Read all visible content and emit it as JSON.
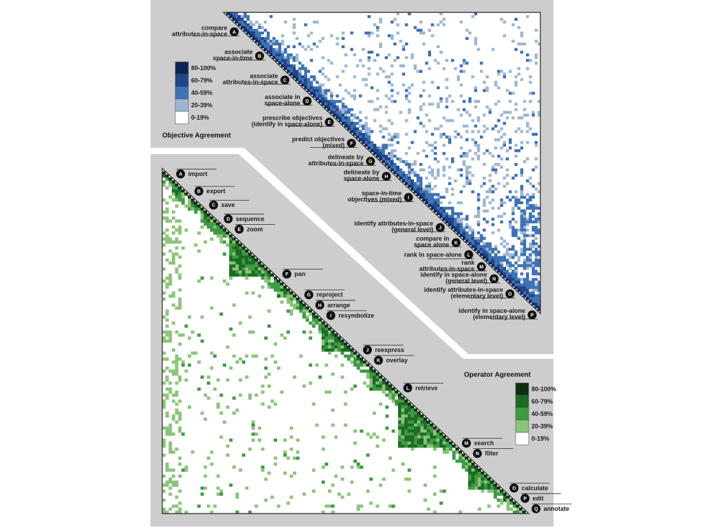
{
  "chart_data": [
    {
      "type": "heatmap",
      "title": "Objective Agreement",
      "legend": {
        "title": "Objective Agreement",
        "entries": [
          "80-100%",
          "60-79%",
          "40-59%",
          "20-39%",
          "0-19%"
        ],
        "colors": [
          "#0d2353",
          "#1f4688",
          "#3f72b4",
          "#9db7d3",
          "#ffffff"
        ]
      },
      "clusters": [
        {
          "code": "A",
          "label": "compare\nattributes-in-space"
        },
        {
          "code": "B",
          "label": "associate\nspace-in-time"
        },
        {
          "code": "C",
          "label": "associate\nattributes-in-space"
        },
        {
          "code": "D",
          "label": "associate in\nspace-alone"
        },
        {
          "code": "E",
          "label": "prescribe objectives\n(identify in space-alone)"
        },
        {
          "code": "F",
          "label": "predict objectives\n(mixed)"
        },
        {
          "code": "G",
          "label": "delineate by\nattributes-in-space"
        },
        {
          "code": "H",
          "label": "delineate by\nspace-alone"
        },
        {
          "code": "I",
          "label": "space-in-time\nobjectives (mixed)"
        },
        {
          "code": "J",
          "label": "identify attributes-in-space\n(general level)"
        },
        {
          "code": "K",
          "label": "compare in\nspace alone"
        },
        {
          "code": "L",
          "label": "rank in space-alone"
        },
        {
          "code": "M",
          "label": "rank\nattributes-in-space"
        },
        {
          "code": "N",
          "label": "identify in space-alone\n(general level)"
        },
        {
          "code": "O",
          "label": "identify attributes-in-space\n(elementary level)"
        },
        {
          "code": "P",
          "label": "identify in space-alone\n(elementary level)"
        }
      ],
      "cluster_positions": [
        0.06,
        0.14,
        0.22,
        0.29,
        0.36,
        0.43,
        0.49,
        0.54,
        0.61,
        0.71,
        0.76,
        0.8,
        0.84,
        0.88,
        0.93,
        1.0
      ]
    },
    {
      "type": "heatmap",
      "title": "Operator Agreement",
      "legend": {
        "title": "Operator Agreement",
        "entries": [
          "80-100%",
          "60-79%",
          "40-59%",
          "20-39%",
          "0-19%"
        ],
        "colors": [
          "#0e2e12",
          "#1c6b25",
          "#3f9a43",
          "#8cc47b",
          "#ffffff"
        ]
      },
      "clusters": [
        {
          "code": "A",
          "label": "import"
        },
        {
          "code": "B",
          "label": "export"
        },
        {
          "code": "C",
          "label": "save"
        },
        {
          "code": "D",
          "label": "sequence"
        },
        {
          "code": "E",
          "label": "zoom"
        },
        {
          "code": "F",
          "label": "pan"
        },
        {
          "code": "G",
          "label": "reproject"
        },
        {
          "code": "H",
          "label": "arrange"
        },
        {
          "code": "I",
          "label": "resymbolize"
        },
        {
          "code": "J",
          "label": "reexpress"
        },
        {
          "code": "K",
          "label": "overlay"
        },
        {
          "code": "L",
          "label": "retrieve"
        },
        {
          "code": "M",
          "label": "search"
        },
        {
          "code": "N",
          "label": "filter"
        },
        {
          "code": "O",
          "label": "calculate"
        },
        {
          "code": "P",
          "label": "edit"
        },
        {
          "code": "Q",
          "label": "annotate"
        }
      ],
      "cluster_positions": [
        0.02,
        0.07,
        0.11,
        0.15,
        0.18,
        0.31,
        0.37,
        0.4,
        0.43,
        0.53,
        0.56,
        0.64,
        0.8,
        0.83,
        0.93,
        0.96,
        0.99
      ]
    }
  ]
}
